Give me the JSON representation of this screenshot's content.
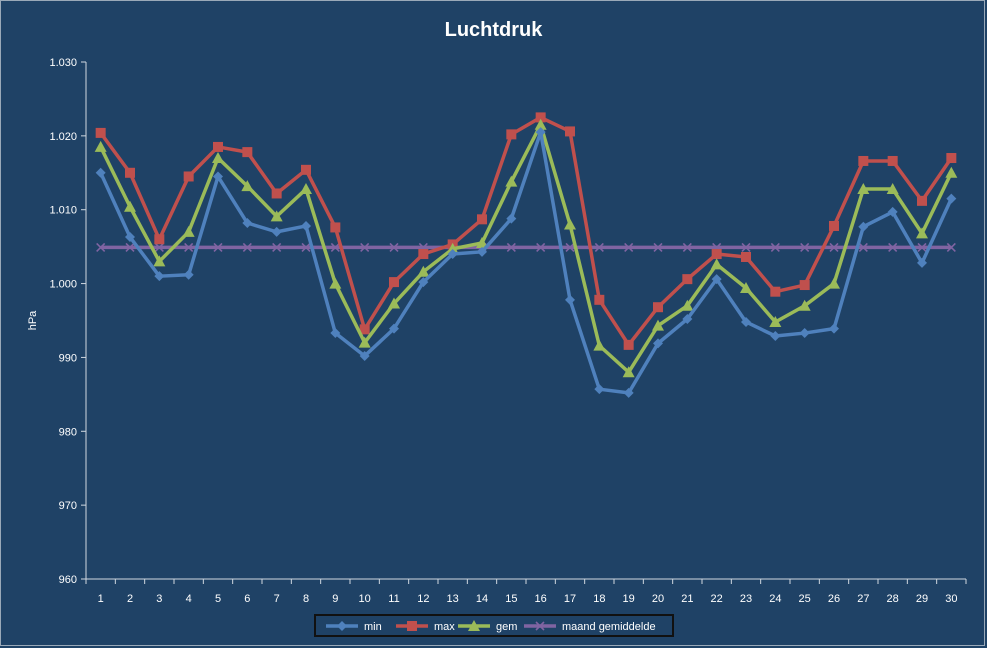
{
  "chart_data": {
    "type": "line",
    "title": "Luchtdruk",
    "ylabel": "hPa",
    "xlabel": "",
    "ylim": [
      960,
      1030
    ],
    "yticks": [
      "960",
      "970",
      "980",
      "990",
      "1.000",
      "1.010",
      "1.020",
      "1.030"
    ],
    "categories": [
      "1",
      "2",
      "3",
      "4",
      "5",
      "6",
      "7",
      "8",
      "9",
      "10",
      "11",
      "12",
      "13",
      "14",
      "15",
      "16",
      "17",
      "18",
      "19",
      "20",
      "21",
      "22",
      "23",
      "24",
      "25",
      "26",
      "27",
      "28",
      "29",
      "30"
    ],
    "grid": false,
    "legend_position": "bottom",
    "series": [
      {
        "name": "min",
        "color": "#4f81bd",
        "marker": "diamond",
        "values": [
          1015.0,
          1006.3,
          1001.0,
          1001.2,
          1014.5,
          1008.2,
          1007.0,
          1007.8,
          993.3,
          990.2,
          993.9,
          1000.2,
          1004.0,
          1004.3,
          1008.8,
          1020.5,
          997.8,
          985.7,
          985.2,
          991.9,
          995.2,
          1000.6,
          994.8,
          992.9,
          993.3,
          993.9,
          1007.7,
          1009.7,
          1002.8,
          1011.5
        ]
      },
      {
        "name": "max",
        "color": "#c0504d",
        "marker": "square",
        "values": [
          1020.4,
          1015.0,
          1006.0,
          1014.5,
          1018.5,
          1017.8,
          1012.2,
          1015.4,
          1007.6,
          993.8,
          1000.2,
          1004.0,
          1005.3,
          1008.7,
          1020.2,
          1022.5,
          1020.6,
          997.8,
          991.7,
          996.8,
          1000.6,
          1004.0,
          1003.6,
          998.9,
          999.8,
          1007.8,
          1016.6,
          1016.6,
          1011.2,
          1017.0
        ]
      },
      {
        "name": "gem",
        "color": "#9bbb59",
        "marker": "triangle",
        "values": [
          1018.5,
          1010.4,
          1003.0,
          1007.0,
          1017.0,
          1013.2,
          1009.1,
          1012.8,
          1000.0,
          992.0,
          997.3,
          1001.6,
          1004.7,
          1005.5,
          1013.8,
          1021.5,
          1008.0,
          991.6,
          988.0,
          994.3,
          997.0,
          1002.6,
          999.4,
          994.8,
          997.0,
          1000.0,
          1012.8,
          1012.8,
          1006.8,
          1015.0
        ]
      },
      {
        "name": "maand gemiddelde",
        "color": "#8064a2",
        "marker": "x",
        "values": [
          1004.9,
          1004.9,
          1004.9,
          1004.9,
          1004.9,
          1004.9,
          1004.9,
          1004.9,
          1004.9,
          1004.9,
          1004.9,
          1004.9,
          1004.9,
          1004.9,
          1004.9,
          1004.9,
          1004.9,
          1004.9,
          1004.9,
          1004.9,
          1004.9,
          1004.9,
          1004.9,
          1004.9,
          1004.9,
          1004.9,
          1004.9,
          1004.9,
          1004.9,
          1004.9
        ]
      }
    ]
  }
}
